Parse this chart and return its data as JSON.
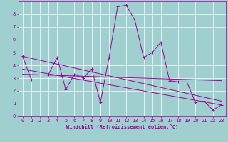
{
  "x_data": [
    0,
    1,
    2,
    3,
    4,
    5,
    6,
    7,
    8,
    9,
    10,
    11,
    12,
    13,
    14,
    15,
    16,
    17,
    18,
    19,
    20,
    21,
    22,
    23
  ],
  "y_main": [
    4.7,
    2.9,
    null,
    3.3,
    4.6,
    2.1,
    3.3,
    3.0,
    3.7,
    1.1,
    4.6,
    8.6,
    8.7,
    7.5,
    4.6,
    5.0,
    5.8,
    2.8,
    2.7,
    2.7,
    1.1,
    1.2,
    0.5,
    0.9
  ],
  "trend1_x": [
    0,
    23
  ],
  "trend1_y": [
    4.7,
    1.2
  ],
  "trend2_x": [
    0,
    23
  ],
  "trend2_y": [
    3.3,
    2.8
  ],
  "trend3_x": [
    0,
    23
  ],
  "trend3_y": [
    3.7,
    0.9
  ],
  "color": "#990099",
  "bg_color": "#9fcfcf",
  "grid_color": "#ffffff",
  "xlabel": "Windchill (Refroidissement éolien,°C)",
  "xlim": [
    -0.5,
    23.5
  ],
  "ylim": [
    0,
    9
  ],
  "yticks": [
    0,
    1,
    2,
    3,
    4,
    5,
    6,
    7,
    8
  ],
  "xticks": [
    0,
    1,
    2,
    3,
    4,
    5,
    6,
    7,
    8,
    9,
    10,
    11,
    12,
    13,
    14,
    15,
    16,
    17,
    18,
    19,
    20,
    21,
    22,
    23
  ],
  "tick_fontsize": 5,
  "xlabel_fontsize": 5,
  "linewidth": 0.7,
  "markersize": 3.0,
  "figwidth": 3.2,
  "figheight": 2.0,
  "dpi": 100
}
